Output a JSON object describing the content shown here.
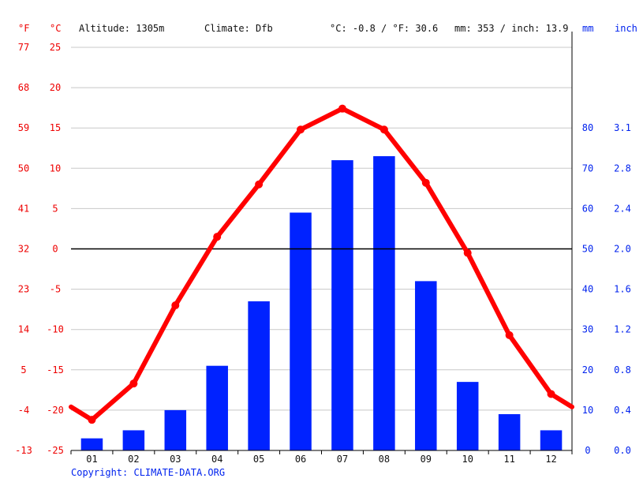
{
  "header": {
    "f_unit": "°F",
    "c_unit": "°C",
    "altitude": "Altitude: 1305m",
    "climate": "Climate: Dfb",
    "temp_summary": "°C: -0.8 / °F: 30.6",
    "precip_summary": "mm: 353 / inch: 13.9",
    "mm_unit": "mm",
    "inch_unit": "inch"
  },
  "footer": {
    "copyright": "Copyright: CLIMATE-DATA.ORG"
  },
  "colors": {
    "temperature": "#ff0000",
    "precipitation": "#0022ff",
    "axis_red": "#ee0000",
    "axis_blue": "#0022ee"
  },
  "chart_data": {
    "type": "bar+line",
    "categories": [
      "01",
      "02",
      "03",
      "04",
      "05",
      "06",
      "07",
      "08",
      "09",
      "10",
      "11",
      "12"
    ],
    "series": [
      {
        "type": "bar",
        "axis": "right-mm",
        "values": [
          3,
          5,
          10,
          21,
          37,
          59,
          72,
          73,
          42,
          17,
          9,
          5
        ]
      },
      {
        "type": "line",
        "axis": "left-celsius",
        "values": [
          -21.2,
          -16.7,
          -7.0,
          1.5,
          8.0,
          14.8,
          17.4,
          14.8,
          8.2,
          -0.5,
          -10.7,
          -18.0
        ],
        "edge_start": -19.6,
        "edge_end": -19.6
      }
    ],
    "celsius_axis": {
      "ticks": [
        "25",
        "20",
        "15",
        "10",
        "5",
        "0",
        "-5",
        "-10",
        "-15",
        "-20",
        "-25"
      ],
      "range": [
        -25,
        25
      ]
    },
    "fahrenheit_axis": {
      "ticks": [
        "77",
        "68",
        "59",
        "50",
        "41",
        "32",
        "23",
        "14",
        "5",
        "-4",
        "-13"
      ]
    },
    "mm_axis": {
      "ticks": [
        "0",
        "10",
        "20",
        "30",
        "40",
        "50",
        "60",
        "70",
        "80"
      ],
      "range": [
        0,
        100
      ]
    },
    "inch_axis": {
      "ticks": [
        "0.0",
        "0.4",
        "0.8",
        "1.2",
        "1.6",
        "2.0",
        "2.4",
        "2.8",
        "3.1"
      ]
    },
    "grid": true
  }
}
